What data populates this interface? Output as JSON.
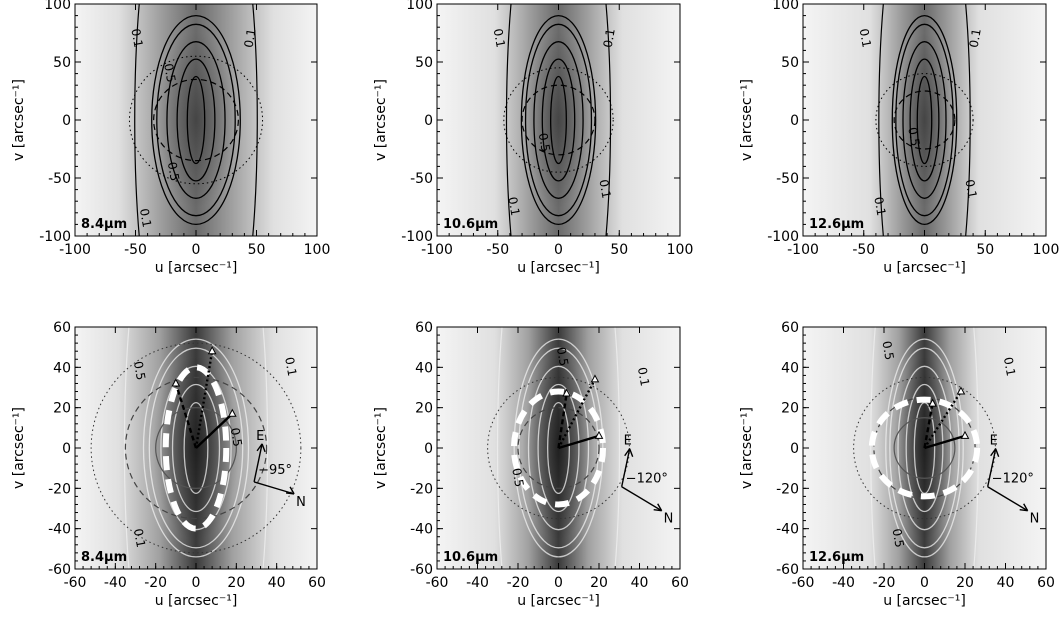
{
  "chart_data": [
    {
      "type": "heatmap",
      "row": "top",
      "wavelength_label": "8.4μm",
      "xlabel": "u [arcsec⁻¹]",
      "ylabel": "v [arcsec⁻¹]",
      "xlim": [
        -100,
        100
      ],
      "ylim": [
        -100,
        100
      ],
      "x_ticks": [
        "-100",
        "-50",
        "0",
        "50",
        "100"
      ],
      "y_ticks": [
        "-100",
        "-50",
        "0",
        "50",
        "100"
      ],
      "width_scale": 1.0,
      "contour_levels": [
        0.1,
        0.2,
        0.3,
        0.5,
        0.7,
        0.9
      ],
      "contour_labels": [
        "0.1",
        "0.1",
        "0.5",
        "0.5",
        "0.1"
      ],
      "circle_radii": [
        35,
        55
      ],
      "color_scheme": "black-contours-on-gray"
    },
    {
      "type": "heatmap",
      "row": "top",
      "wavelength_label": "10.6μm",
      "xlabel": "u [arcsec⁻¹]",
      "ylabel": "v [arcsec⁻¹]",
      "xlim": [
        -100,
        100
      ],
      "ylim": [
        -100,
        100
      ],
      "x_ticks": [
        "-100",
        "-50",
        "0",
        "50",
        "100"
      ],
      "y_ticks": [
        "-100",
        "-50",
        "0",
        "50",
        "100"
      ],
      "width_scale": 0.82,
      "contour_levels": [
        0.1,
        0.2,
        0.3,
        0.5,
        0.7,
        0.9
      ],
      "contour_labels": [
        "0.1",
        "0.1",
        "0.1",
        "0.1",
        "0.5"
      ],
      "circle_radii": [
        30,
        45
      ],
      "color_scheme": "black-contours-on-gray"
    },
    {
      "type": "heatmap",
      "row": "top",
      "wavelength_label": "12.6μm",
      "xlabel": "u [arcsec⁻¹]",
      "ylabel": "v [arcsec⁻¹]",
      "xlim": [
        -100,
        100
      ],
      "ylim": [
        -100,
        100
      ],
      "x_ticks": [
        "-100",
        "-50",
        "0",
        "50",
        "100"
      ],
      "y_ticks": [
        "-100",
        "-50",
        "0",
        "50",
        "100"
      ],
      "width_scale": 0.7,
      "contour_levels": [
        0.1,
        0.2,
        0.3,
        0.5,
        0.7,
        0.9
      ],
      "contour_labels": [
        "0.1",
        "0.1",
        "0.1",
        "0.1",
        "0.5"
      ],
      "circle_radii": [
        25,
        40
      ],
      "color_scheme": "black-contours-on-gray"
    },
    {
      "type": "heatmap",
      "row": "bottom",
      "wavelength_label": "8.4μm",
      "xlabel": "u [arcsec⁻¹]",
      "ylabel": "v [arcsec⁻¹]",
      "xlim": [
        -60,
        60
      ],
      "ylim": [
        -60,
        60
      ],
      "x_ticks": [
        "-60",
        "-40",
        "-20",
        "0",
        "20",
        "40",
        "60"
      ],
      "y_ticks": [
        "-60",
        "-40",
        "-20",
        "0",
        "20",
        "40",
        "60"
      ],
      "width_scale": 1.0,
      "contour_levels": [
        0.1,
        0.2,
        0.3,
        0.5,
        0.7,
        0.9
      ],
      "contour_labels": [
        "0.5",
        "0.5",
        "0.1",
        "0.1"
      ],
      "circle_radii": [
        20,
        35,
        52
      ],
      "dashed_white_ellipse": [
        15,
        40
      ],
      "baselines": [
        {
          "u": 18,
          "v": 17,
          "style": "solid"
        },
        {
          "u": -10,
          "v": 32,
          "style": "dashed"
        },
        {
          "u": 8,
          "v": 48,
          "style": "dotted"
        }
      ],
      "compass": {
        "angle_label": "−95°",
        "n_label": "N",
        "e_label": "E"
      },
      "color_scheme": "white-contours-on-gray"
    },
    {
      "type": "heatmap",
      "row": "bottom",
      "wavelength_label": "10.6μm",
      "xlabel": "u [arcsec⁻¹]",
      "ylabel": "v [arcsec⁻¹]",
      "xlim": [
        -60,
        60
      ],
      "ylim": [
        -60,
        60
      ],
      "x_ticks": [
        "-60",
        "-40",
        "-20",
        "0",
        "20",
        "40",
        "60"
      ],
      "y_ticks": [
        "-60",
        "-40",
        "-20",
        "0",
        "20",
        "40",
        "60"
      ],
      "width_scale": 0.82,
      "contour_levels": [
        0.1,
        0.2,
        0.3,
        0.5,
        0.7,
        0.9
      ],
      "contour_labels": [
        "0.5",
        "0.1",
        "0.5"
      ],
      "circle_radii": [
        20,
        35
      ],
      "dashed_white_ellipse": [
        22,
        28
      ],
      "baselines": [
        {
          "u": 20,
          "v": 6,
          "style": "solid"
        },
        {
          "u": 4,
          "v": 27,
          "style": "dashed"
        },
        {
          "u": 18,
          "v": 34,
          "style": "dotted"
        }
      ],
      "compass": {
        "angle_label": "−120°",
        "n_label": "N",
        "e_label": "E"
      },
      "color_scheme": "white-contours-on-gray"
    },
    {
      "type": "heatmap",
      "row": "bottom",
      "wavelength_label": "12.6μm",
      "xlabel": "u [arcsec⁻¹]",
      "ylabel": "v [arcsec⁻¹]",
      "xlim": [
        -60,
        60
      ],
      "ylim": [
        -60,
        60
      ],
      "x_ticks": [
        "-60",
        "-40",
        "-20",
        "0",
        "20",
        "40",
        "60"
      ],
      "y_ticks": [
        "-60",
        "-40",
        "-20",
        "0",
        "20",
        "40",
        "60"
      ],
      "width_scale": 0.7,
      "contour_levels": [
        0.1,
        0.2,
        0.3,
        0.5,
        0.7,
        0.9
      ],
      "contour_labels": [
        "0.5",
        "0.1",
        "0.5"
      ],
      "circle_radii": [
        15,
        25,
        35
      ],
      "dashed_white_ellipse": [
        26,
        24
      ],
      "baselines": [
        {
          "u": 20,
          "v": 6,
          "style": "solid"
        },
        {
          "u": 4,
          "v": 22,
          "style": "dashed"
        },
        {
          "u": 18,
          "v": 28,
          "style": "dotted"
        }
      ],
      "compass": {
        "angle_label": "−120°",
        "n_label": "N",
        "e_label": "E"
      },
      "color_scheme": "white-contours-on-gray"
    }
  ]
}
